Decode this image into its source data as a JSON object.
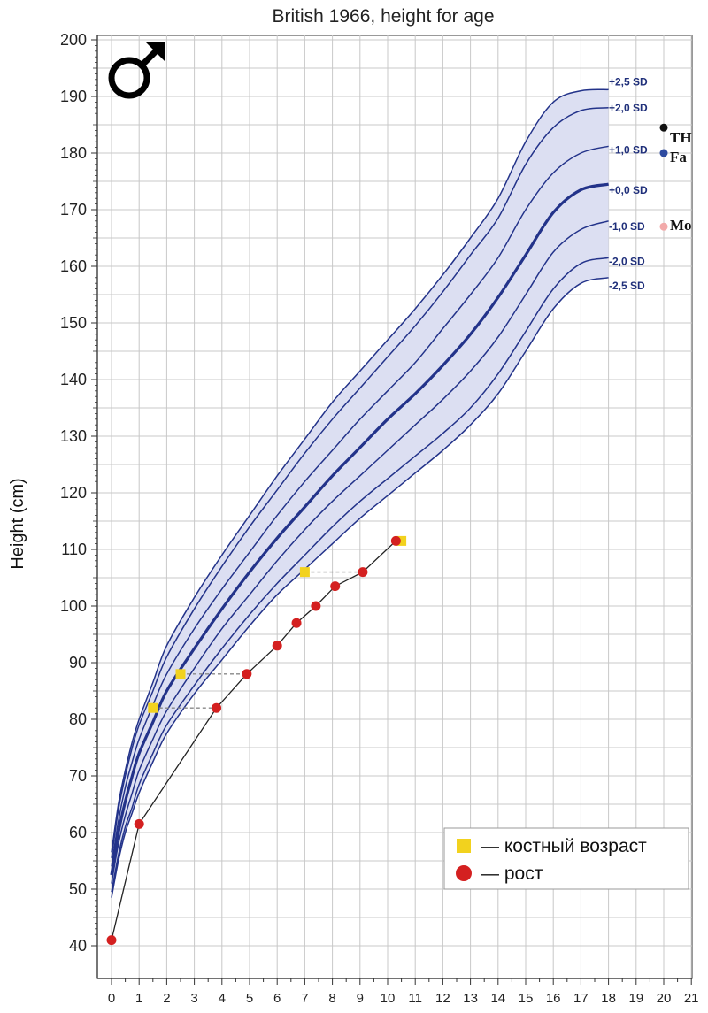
{
  "chart_data": {
    "type": "line",
    "title": "British 1966, height for age",
    "xlabel": "",
    "ylabel": "Height (cm)",
    "xlim": [
      0,
      21
    ],
    "ylim": [
      38,
      201
    ],
    "xticks": [
      "0",
      "1",
      "2",
      "3",
      "4",
      "5",
      "6",
      "7",
      "8",
      "9",
      "10",
      "11",
      "12",
      "13",
      "14",
      "15",
      "16",
      "17",
      "18",
      "19",
      "20",
      "21"
    ],
    "yticks": [
      "40",
      "50",
      "60",
      "70",
      "80",
      "90",
      "100",
      "110",
      "120",
      "130",
      "140",
      "150",
      "160",
      "170",
      "180",
      "190",
      "200"
    ],
    "grid": true,
    "sex_symbol": "male-symbol",
    "colors": {
      "curve": "#23338a",
      "band": "#dcdff2",
      "patient_line": "#222222",
      "height_marker": "#d42020",
      "bone_age_marker": "#f2d21e",
      "connector": "#888888",
      "target": "#111111",
      "father": "#2d4aa0",
      "mother": "#f2aaaa"
    },
    "reference_ages": [
      0,
      0.25,
      0.5,
      0.75,
      1,
      1.5,
      2,
      3,
      4,
      5,
      6,
      7,
      8,
      9,
      10,
      11,
      12,
      13,
      14,
      15,
      16,
      17,
      18
    ],
    "reference_series": [
      {
        "name": "+2,5 SD",
        "label": "+2,5 SD",
        "values": [
          56.5,
          65,
          71,
          76,
          80,
          86.5,
          93,
          101.5,
          109,
          116,
          123,
          129.5,
          136,
          141.5,
          147,
          152.5,
          158.5,
          165,
          172,
          182,
          189,
          191,
          191.2
        ]
      },
      {
        "name": "+2,0 SD",
        "label": "+2,0 SD",
        "values": [
          55.5,
          64,
          70,
          75,
          79,
          85,
          91,
          99.5,
          107,
          114,
          120.5,
          127,
          133,
          138.5,
          144,
          149.5,
          155.5,
          162,
          168.5,
          178,
          184.5,
          187.5,
          188
        ]
      },
      {
        "name": "+1,0 SD",
        "label": "+1,0 SD",
        "values": [
          54,
          62,
          68,
          72.5,
          76.5,
          82.5,
          88,
          96,
          103,
          109.5,
          116,
          122,
          127.5,
          133,
          138,
          143,
          149,
          155,
          161.5,
          170,
          176.5,
          180,
          181.2
        ]
      },
      {
        "name": "+0,0 SD",
        "label": "+0,0 SD",
        "values": [
          52.5,
          60,
          65.5,
          70,
          74,
          79.5,
          85,
          92.5,
          99.5,
          106,
          112,
          117.5,
          123,
          128,
          133,
          137.5,
          142.5,
          148,
          154.5,
          162,
          169.5,
          173.5,
          174.5
        ]
      },
      {
        "name": "-1,0 SD",
        "label": "-1,0 SD",
        "values": [
          51,
          58,
          63,
          67,
          71,
          76.5,
          81.5,
          89,
          96,
          102,
          108,
          113.5,
          118.5,
          123,
          127.5,
          132,
          136.5,
          141.5,
          147.5,
          155,
          162.5,
          166.5,
          168
        ]
      },
      {
        "name": "-2,0 SD",
        "label": "-2,0 SD",
        "values": [
          49.5,
          56,
          61,
          64.5,
          68.5,
          74,
          79,
          86,
          92.5,
          98.5,
          104,
          109,
          114,
          118.5,
          122.5,
          126.5,
          130.5,
          135,
          141,
          148.5,
          156,
          160.5,
          161.5
        ]
      },
      {
        "name": "-2,5 SD",
        "label": "-2,5 SD",
        "values": [
          48.5,
          55,
          60,
          63.5,
          67,
          72.5,
          77.5,
          84.5,
          90.5,
          96.5,
          102,
          106.5,
          111,
          115.5,
          119.5,
          123.5,
          127.5,
          132,
          137.5,
          145,
          152.5,
          157,
          158
        ]
      }
    ],
    "patient_height": {
      "name": "рост",
      "points": [
        {
          "x": 0,
          "y": 41
        },
        {
          "x": 1,
          "y": 61.5
        },
        {
          "x": 3.8,
          "y": 82
        },
        {
          "x": 4.9,
          "y": 88
        },
        {
          "x": 6,
          "y": 93
        },
        {
          "x": 6.7,
          "y": 97
        },
        {
          "x": 7.4,
          "y": 100
        },
        {
          "x": 8.1,
          "y": 103.5
        },
        {
          "x": 9.1,
          "y": 106
        },
        {
          "x": 10.3,
          "y": 111.5
        }
      ]
    },
    "bone_age": {
      "name": "костный возраст",
      "points": [
        {
          "x": 1.5,
          "y": 82,
          "link_x": 3.8
        },
        {
          "x": 2.5,
          "y": 88,
          "link_x": 4.9
        },
        {
          "x": 7,
          "y": 106,
          "link_x": 9.1
        },
        {
          "x": 10.5,
          "y": 111.5,
          "link_x": 10.3
        }
      ]
    },
    "parental_markers": [
      {
        "label": "TH",
        "x": 20,
        "y": 184.5,
        "color_key": "target"
      },
      {
        "label": "Fa",
        "x": 20,
        "y": 180,
        "color_key": "father"
      },
      {
        "label": "Mo",
        "x": 20,
        "y": 167,
        "color_key": "mother"
      }
    ],
    "legend": {
      "position": "bottom-right",
      "items": [
        {
          "label": "— костный возраст",
          "marker": "square"
        },
        {
          "label": "— рост",
          "marker": "circle"
        }
      ]
    }
  }
}
